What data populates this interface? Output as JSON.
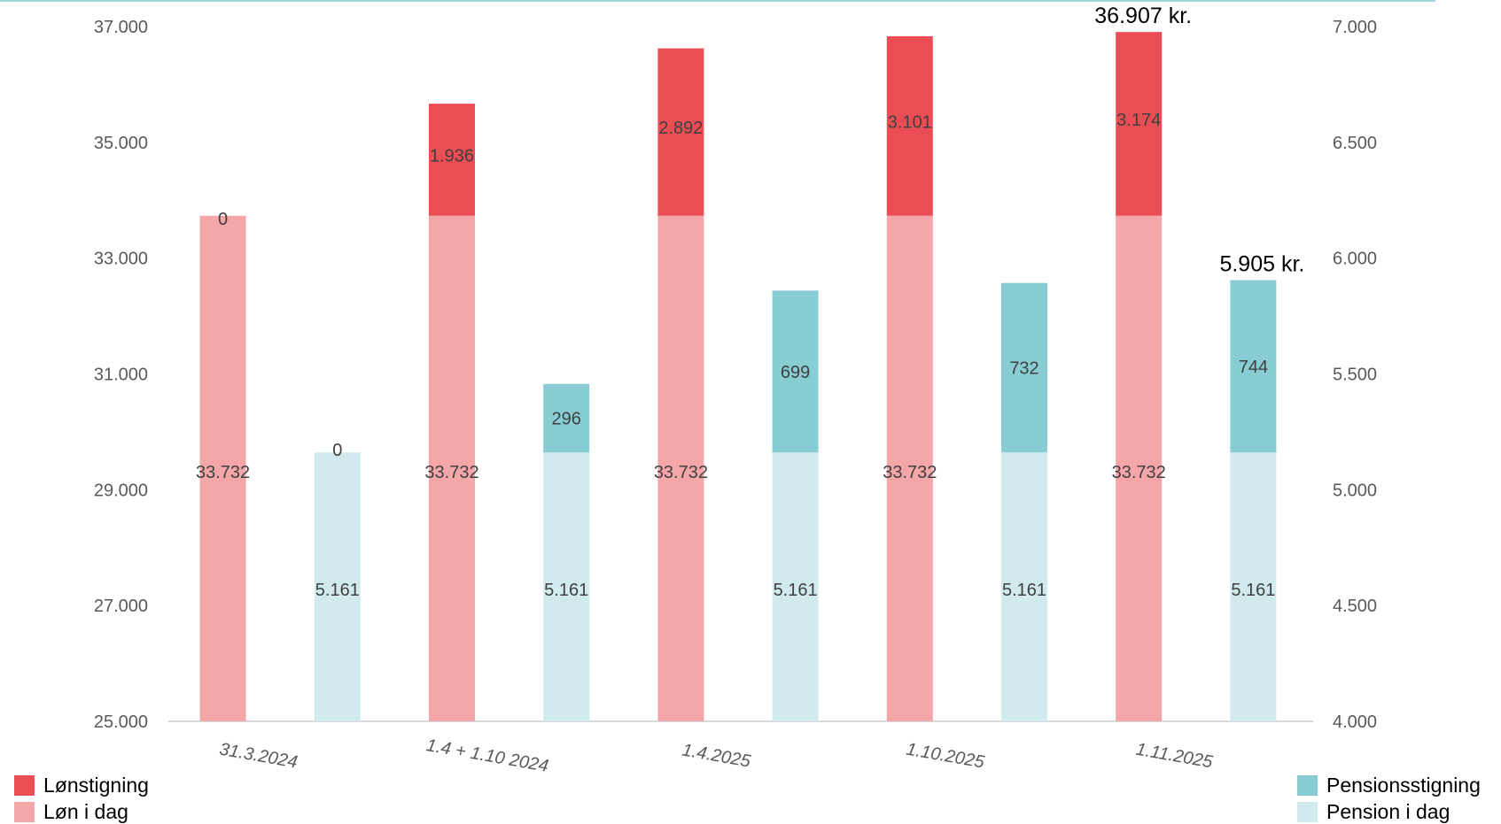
{
  "chart_data": {
    "type": "bar",
    "categories": [
      "31.3.2024",
      "1.4 + 1.10 2024",
      "1.4.2025",
      "1.10.2025",
      "1.11.2025"
    ],
    "left_axis": {
      "ylim": [
        25000,
        37000
      ],
      "ticks": [
        "25.000",
        "27.000",
        "29.000",
        "31.000",
        "33.000",
        "35.000",
        "37.000"
      ],
      "tick_values": [
        25000,
        27000,
        29000,
        31000,
        33000,
        35000,
        37000
      ]
    },
    "right_axis": {
      "ylim": [
        4000,
        7000
      ],
      "ticks": [
        "4.000",
        "4.500",
        "5.000",
        "5.500",
        "6.000",
        "6.500",
        "7.000"
      ],
      "tick_values": [
        4000,
        4500,
        5000,
        5500,
        6000,
        6500,
        7000
      ]
    },
    "series": [
      {
        "name": "Løn i dag",
        "axis": "left",
        "stack": "salary",
        "color": "#f4a6a9",
        "values": [
          33732,
          33732,
          33732,
          33732,
          33732
        ],
        "labels": [
          "33.732",
          "33.732",
          "33.732",
          "33.732",
          "33.732"
        ]
      },
      {
        "name": "Lønstigning",
        "axis": "left",
        "stack": "salary",
        "color": "#eb4d55",
        "values": [
          0,
          1936,
          2892,
          3101,
          3174
        ],
        "labels": [
          "0",
          "1.936",
          "2.892",
          "3.101",
          "3.174"
        ]
      },
      {
        "name": "Pension i dag",
        "axis": "right",
        "stack": "pension",
        "color": "#d1eaed",
        "values": [
          5161,
          5161,
          5161,
          5161,
          5161
        ],
        "labels": [
          "5.161",
          "5.161",
          "5.161",
          "5.161",
          "5.161"
        ]
      },
      {
        "name": "Pensionsstigning",
        "axis": "right",
        "stack": "pension",
        "color": "#88cdd3",
        "values": [
          0,
          296,
          699,
          732,
          744
        ],
        "labels": [
          "0",
          "296",
          "699",
          "732",
          "744"
        ]
      }
    ],
    "annotations": [
      {
        "text": "36.907 kr.",
        "category_index": 4,
        "stack": "salary"
      },
      {
        "text": "5.905 kr.",
        "category_index": 4,
        "stack": "pension"
      }
    ],
    "legend": {
      "left": [
        "Lønstigning",
        "Løn i dag"
      ],
      "right": [
        "Pensionsstigning",
        "Pension i dag"
      ]
    },
    "grid": false
  }
}
